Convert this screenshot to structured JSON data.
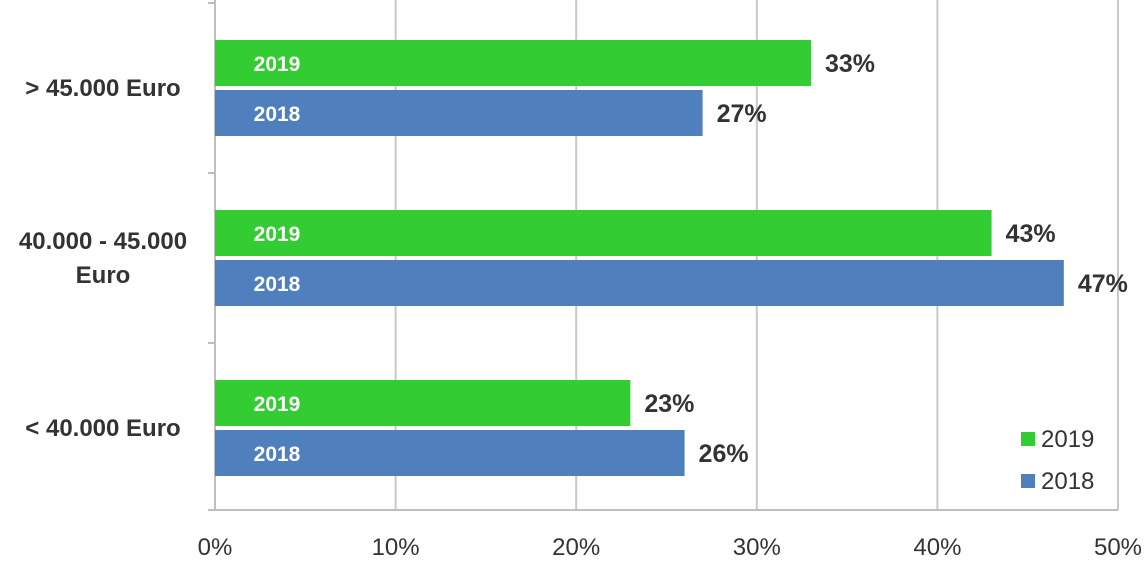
{
  "chart_data": {
    "type": "bar",
    "orientation": "horizontal",
    "categories": [
      "> 45.000 Euro",
      "40.000 - 45.000 Euro",
      "< 40.000 Euro"
    ],
    "category_label_lines": [
      [
        "> 45.000 Euro"
      ],
      [
        "40.000 - 45.000",
        "Euro"
      ],
      [
        "< 40.000 Euro"
      ]
    ],
    "series": [
      {
        "name": "2019",
        "color": "#33cc33",
        "values": [
          33,
          43,
          23
        ],
        "labels": [
          "33%",
          "43%",
          "23%"
        ]
      },
      {
        "name": "2018",
        "color": "#4f7fbd",
        "values": [
          27,
          47,
          26
        ],
        "labels": [
          "27%",
          "47%",
          "26%"
        ]
      }
    ],
    "xlim": [
      0,
      50
    ],
    "xticks": [
      0,
      10,
      20,
      30,
      40,
      50
    ],
    "xtick_labels": [
      "0%",
      "10%",
      "20%",
      "30%",
      "40%",
      "50%"
    ],
    "grid": true,
    "legend_position": "bottom-right",
    "title": "",
    "xlabel": "",
    "ylabel": ""
  }
}
